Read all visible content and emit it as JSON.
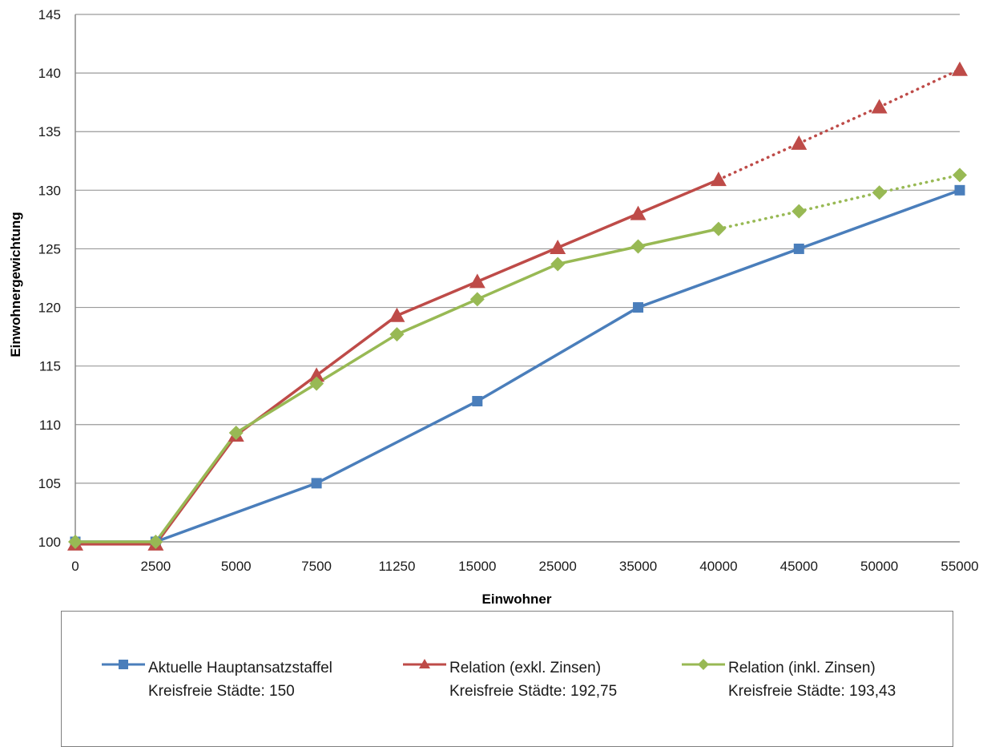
{
  "chart_data": {
    "type": "line",
    "categories": [
      "0",
      "2500",
      "5000",
      "7500",
      "11250",
      "15000",
      "25000",
      "35000",
      "40000",
      "45000",
      "50000",
      "55000"
    ],
    "xlabel": "Einwohner",
    "ylabel": "Einwohnergewichtung",
    "ylim": [
      100,
      145
    ],
    "yticks": [
      100,
      105,
      110,
      115,
      120,
      125,
      130,
      135,
      140,
      145
    ],
    "grid": true,
    "legend_position": "bottom",
    "series": [
      {
        "name": "Aktuelle Hauptansatzstaffel",
        "legend_sub": "Kreisfreie Städte: 150",
        "color": "#4a7ebb",
        "marker": "square",
        "values": [
          100,
          100,
          null,
          105,
          null,
          112,
          null,
          120,
          null,
          125,
          null,
          130
        ],
        "dotted_from_index": null
      },
      {
        "name": "Relation (exkl. Zinsen)",
        "legend_sub": "Kreisfreie Städte: 192,75",
        "color": "#be4b48",
        "marker": "triangle",
        "values": [
          99.8,
          99.8,
          109.1,
          114.2,
          119.3,
          122.2,
          125.1,
          128.0,
          130.9,
          134.0,
          137.1,
          140.3
        ],
        "dotted_from_index": 8
      },
      {
        "name": "Relation (inkl. Zinsen)",
        "legend_sub": "Kreisfreie Städte: 193,43",
        "color": "#98b954",
        "marker": "diamond",
        "values": [
          100,
          100,
          109.3,
          113.5,
          117.7,
          120.7,
          123.7,
          125.2,
          126.7,
          128.2,
          129.8,
          131.3
        ],
        "dotted_from_index": 8
      }
    ]
  }
}
